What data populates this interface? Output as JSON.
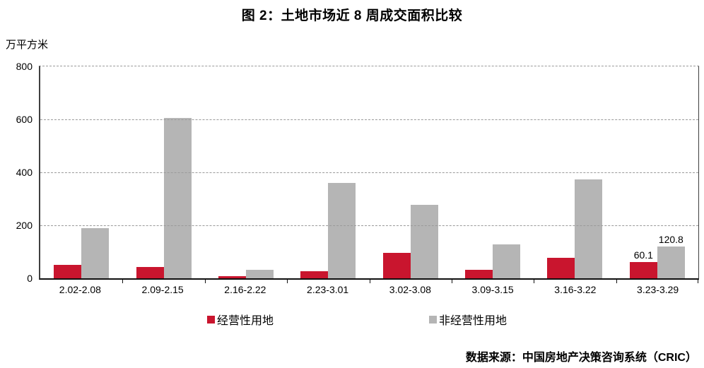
{
  "title": "图 2：土地市场近 8 周成交面积比较",
  "y_axis_unit_label": "万平方米",
  "source_note": "数据来源：中国房地产决策咨询系统（CRIC）",
  "colors": {
    "operational_red": "#c9152e",
    "non_operational_gray": "#b5b5b5",
    "gridline_gray": "#9a9a9a"
  },
  "legend": {
    "items": [
      {
        "label": "经营性用地",
        "color": "#c9152e"
      },
      {
        "label": "非经营性用地",
        "color": "#b5b5b5"
      }
    ]
  },
  "chart_data": {
    "type": "bar",
    "title": "图 2：土地市场近 8 周成交面积比较",
    "xlabel": "",
    "ylabel": "万平方米",
    "ylim": [
      0,
      800
    ],
    "y_ticks": [
      0,
      200,
      400,
      600,
      800
    ],
    "grid": "horizontal-dashed",
    "legend_position": "bottom",
    "categories": [
      "2.02-2.08",
      "2.09-2.15",
      "2.16-2.22",
      "2.23-3.01",
      "3.02-3.08",
      "3.09-3.15",
      "3.16-3.22",
      "3.23-3.29"
    ],
    "series": [
      {
        "name": "经营性用地",
        "color": "#c9152e",
        "values": [
          50,
          42,
          9,
          27,
          95,
          33,
          76,
          60.1
        ],
        "data_labels": [
          null,
          null,
          null,
          null,
          null,
          null,
          null,
          "60.1"
        ]
      },
      {
        "name": "非经营性用地",
        "color": "#b5b5b5",
        "values": [
          190,
          605,
          31,
          359,
          277,
          128,
          372,
          120.8
        ],
        "data_labels": [
          null,
          null,
          null,
          null,
          null,
          null,
          null,
          "120.8"
        ]
      }
    ]
  }
}
